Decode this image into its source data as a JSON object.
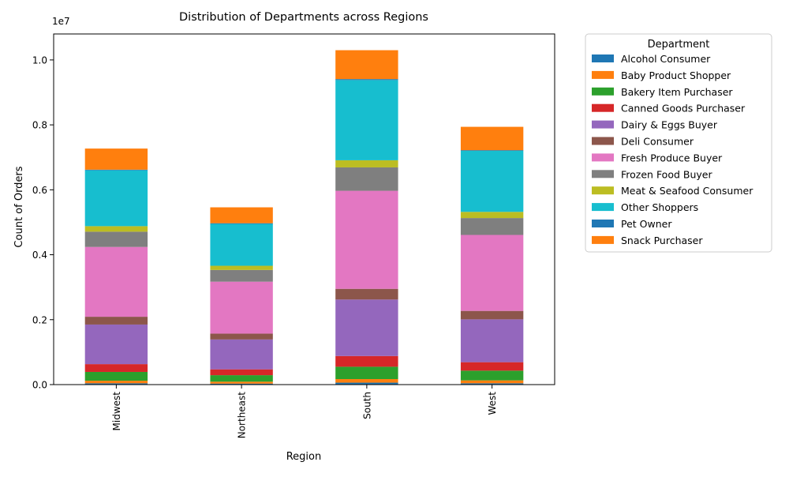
{
  "chart_data": {
    "type": "bar",
    "stacked": true,
    "title": "Distribution of Departments across Regions",
    "xlabel": "Region",
    "ylabel": "Count of Orders",
    "y_multiplier_label": "1e7",
    "y_tick_labels": [
      "0.0",
      "0.2",
      "0.4",
      "0.6",
      "0.8",
      "1.0"
    ],
    "y_tick_values": [
      0,
      2000000,
      4000000,
      6000000,
      8000000,
      10000000
    ],
    "ylim": [
      0,
      10800000
    ],
    "grid": false,
    "legend_title": "Department",
    "legend_position": "outside right, top",
    "categories": [
      "Midwest",
      "Northeast",
      "South",
      "West"
    ],
    "series": [
      {
        "name": "Alcohol Consumer",
        "color": "#1f77b4",
        "values": [
          40000,
          30000,
          60000,
          40000
        ]
      },
      {
        "name": "Baby Product Shopper",
        "color": "#ff7f0e",
        "values": [
          80000,
          60000,
          110000,
          90000
        ]
      },
      {
        "name": "Bakery Item Purchaser",
        "color": "#2ca02c",
        "values": [
          270000,
          200000,
          380000,
          300000
        ]
      },
      {
        "name": "Canned Goods Purchaser",
        "color": "#d62728",
        "values": [
          240000,
          180000,
          330000,
          260000
        ]
      },
      {
        "name": "Dairy & Eggs Buyer",
        "color": "#9467bd",
        "values": [
          1220000,
          920000,
          1740000,
          1320000
        ]
      },
      {
        "name": "Deli Consumer",
        "color": "#8c564b",
        "values": [
          240000,
          180000,
          330000,
          260000
        ]
      },
      {
        "name": "Fresh Produce Buyer",
        "color": "#e377c2",
        "values": [
          2150000,
          1600000,
          3020000,
          2340000
        ]
      },
      {
        "name": "Frozen Food Buyer",
        "color": "#7f7f7f",
        "values": [
          470000,
          360000,
          720000,
          520000
        ]
      },
      {
        "name": "Meat & Seafood Consumer",
        "color": "#bcbd22",
        "values": [
          170000,
          130000,
          220000,
          190000
        ]
      },
      {
        "name": "Other Shoppers",
        "color": "#17becf",
        "values": [
          1720000,
          1290000,
          2470000,
          1880000
        ]
      },
      {
        "name": "Pet Owner",
        "color": "#1f77b4",
        "values": [
          20000,
          20000,
          30000,
          20000
        ]
      },
      {
        "name": "Snack Purchaser",
        "color": "#ff7f0e",
        "values": [
          650000,
          490000,
          890000,
          720000
        ]
      }
    ]
  }
}
